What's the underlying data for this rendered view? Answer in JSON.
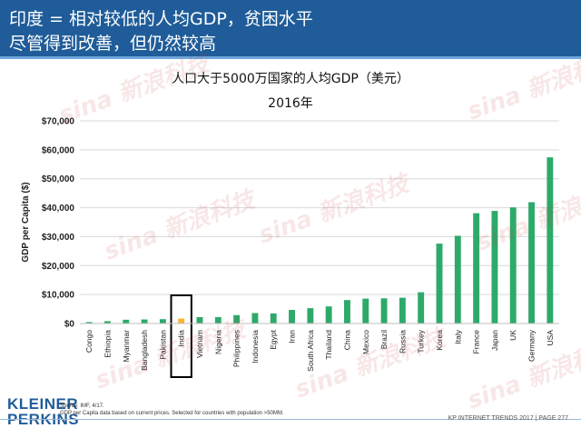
{
  "header": {
    "line1": "印度 = 相对较低的人均GDP，贫困水平",
    "line2": "尽管得到改善，但仍然较高"
  },
  "chart_data": {
    "type": "bar",
    "title": "人口大于5000万国家的人均GDP（美元）",
    "subtitle": "2016年",
    "ylabel": "GDP per Capita ($)",
    "xlabel": "",
    "ylim": [
      0,
      70000
    ],
    "yticks": [
      "$0",
      "$10,000",
      "$20,000",
      "$30,000",
      "$40,000",
      "$50,000",
      "$60,000",
      "$70,000"
    ],
    "grid": true,
    "categories": [
      "Congo",
      "Ethiopia",
      "Myanmar",
      "Bangladesh",
      "Pakistan",
      "India",
      "Vietnam",
      "Nigeria",
      "Philippines",
      "Indonesia",
      "Egypt",
      "Iran",
      "South Africa",
      "Thailand",
      "China",
      "Mexico",
      "Brazil",
      "Russia",
      "Turkey",
      "Korea",
      "Italy",
      "France",
      "Japan",
      "UK",
      "Germany",
      "USA"
    ],
    "values": [
      500,
      800,
      1300,
      1400,
      1500,
      1700,
      2200,
      2200,
      2900,
      3600,
      3500,
      4700,
      5300,
      5900,
      8100,
      8600,
      8700,
      8900,
      10800,
      27600,
      30300,
      38100,
      38900,
      40100,
      41900,
      57400
    ],
    "highlight": "India",
    "colors": {
      "bar": "#2daa6a",
      "highlight": "#f7b531",
      "box": "#000000",
      "grid": "#d9d9d9"
    }
  },
  "footer": {
    "logo_line1": "KLEINER",
    "logo_line2": "PERKINS",
    "source_line1": "Source: IMF, 4/17.",
    "source_line2": "GDP per Capita data based on current prices. Selected for countries with population >50MM.",
    "right": "KP INTERNET TRENDS 2017  |  PAGE 277"
  },
  "watermark": "sina 新浪科技"
}
